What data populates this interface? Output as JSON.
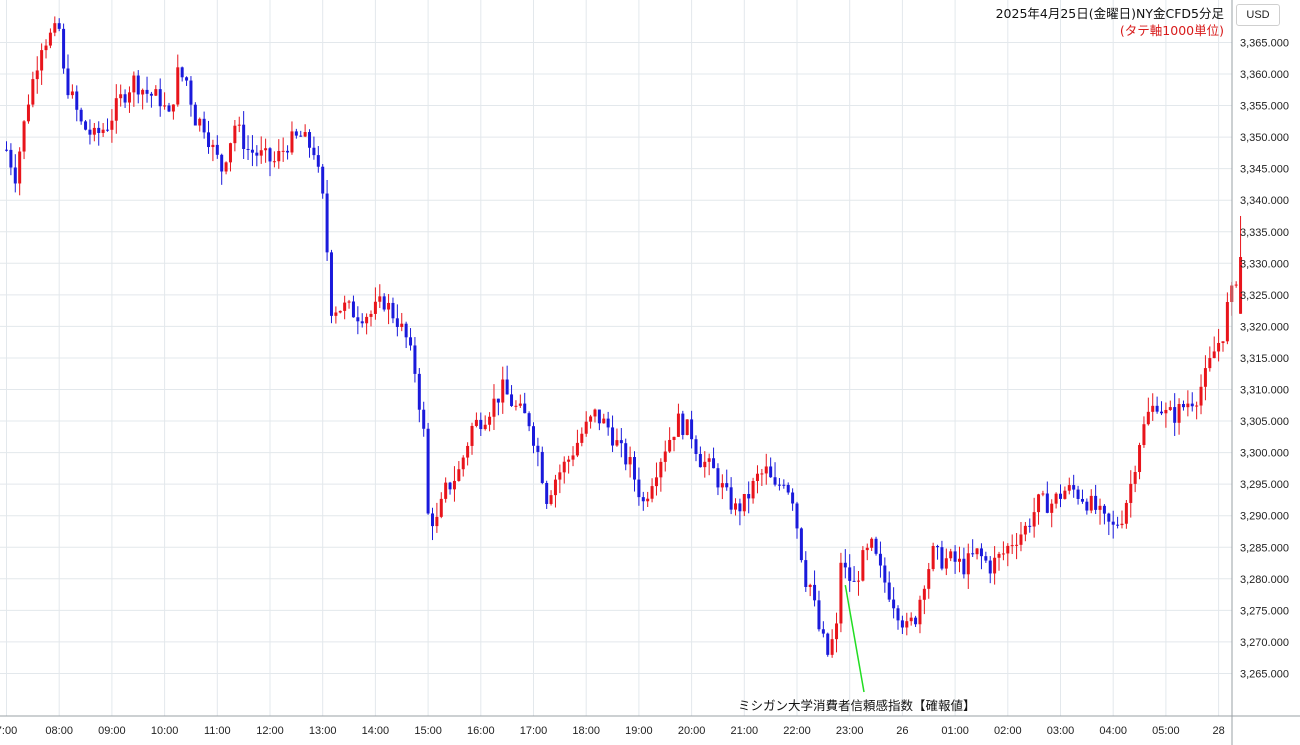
{
  "header": {
    "title": "2025年4月25日(金曜日)NY金CFD5分足",
    "subtitle": "(タテ軸1000単位)",
    "currency": "USD"
  },
  "chart_data": {
    "type": "candlestick",
    "title": "2025年4月25日(金曜日)NY金CFD5分足",
    "subtitle": "(タテ軸1000単位)",
    "currency": "USD",
    "ylim": [
      3260,
      3370
    ],
    "y_ticks": [
      "3,265.000",
      "3,270.000",
      "3,275.000",
      "3,280.000",
      "3,285.000",
      "3,290.000",
      "3,295.000",
      "3,300.000",
      "3,305.000",
      "3,310.000",
      "3,315.000",
      "3,320.000",
      "3,325.000",
      "3,330.000",
      "3,335.000",
      "3,340.000",
      "3,345.000",
      "3,350.000",
      "3,355.000",
      "3,360.000",
      "3,365.000"
    ],
    "x_labels": [
      "7:00",
      "08:00",
      "09:00",
      "10:00",
      "11:00",
      "12:00",
      "13:00",
      "14:00",
      "15:00",
      "16:00",
      "17:00",
      "18:00",
      "19:00",
      "20:00",
      "21:00",
      "22:00",
      "23:00",
      "26",
      "01:00",
      "02:00",
      "03:00",
      "04:00",
      "05:00",
      "28"
    ],
    "grid": true,
    "up_color": "#e8141b",
    "down_color": "#1a1adb",
    "annotation": {
      "text": "ミシガン大学消費者信頼感指数【確報値】",
      "time": "22:55",
      "price": 3279
    },
    "close_path": [
      [
        "07:00",
        3348
      ],
      [
        "07:10",
        3344
      ],
      [
        "07:25",
        3356
      ],
      [
        "07:40",
        3365
      ],
      [
        "07:50",
        3366
      ],
      [
        "08:00",
        3367
      ],
      [
        "08:05",
        3360
      ],
      [
        "08:15",
        3356
      ],
      [
        "08:25",
        3352
      ],
      [
        "08:40",
        3350
      ],
      [
        "08:55",
        3352
      ],
      [
        "09:10",
        3356
      ],
      [
        "09:25",
        3359
      ],
      [
        "09:40",
        3357
      ],
      [
        "09:55",
        3356
      ],
      [
        "10:05",
        3353
      ],
      [
        "10:15",
        3360
      ],
      [
        "10:25",
        3359
      ],
      [
        "10:35",
        3353
      ],
      [
        "10:45",
        3352
      ],
      [
        "10:55",
        3348
      ],
      [
        "11:05",
        3345
      ],
      [
        "11:20",
        3352
      ],
      [
        "11:35",
        3348
      ],
      [
        "11:50",
        3347
      ],
      [
        "12:05",
        3346
      ],
      [
        "12:20",
        3349
      ],
      [
        "12:35",
        3350
      ],
      [
        "12:50",
        3348
      ],
      [
        "13:00",
        3340
      ],
      [
        "13:05",
        3332
      ],
      [
        "13:10",
        3323
      ],
      [
        "13:25",
        3323
      ],
      [
        "13:40",
        3322
      ],
      [
        "13:55",
        3322
      ],
      [
        "14:10",
        3324
      ],
      [
        "14:25",
        3321
      ],
      [
        "14:35",
        3318
      ],
      [
        "14:45",
        3313
      ],
      [
        "14:55",
        3303
      ],
      [
        "15:00",
        3290
      ],
      [
        "15:10",
        3289
      ],
      [
        "15:20",
        3294
      ],
      [
        "15:35",
        3297
      ],
      [
        "15:50",
        3304
      ],
      [
        "16:05",
        3306
      ],
      [
        "16:15",
        3308
      ],
      [
        "16:25",
        3310
      ],
      [
        "16:40",
        3307
      ],
      [
        "16:55",
        3305
      ],
      [
        "17:05",
        3300
      ],
      [
        "17:15",
        3293
      ],
      [
        "17:25",
        3296
      ],
      [
        "17:40",
        3299
      ],
      [
        "17:55",
        3303
      ],
      [
        "18:10",
        3306
      ],
      [
        "18:25",
        3304
      ],
      [
        "18:40",
        3300
      ],
      [
        "18:50",
        3298
      ],
      [
        "19:00",
        3294
      ],
      [
        "19:05",
        3292
      ],
      [
        "19:15",
        3296
      ],
      [
        "19:30",
        3301
      ],
      [
        "19:45",
        3305
      ],
      [
        "20:00",
        3303
      ],
      [
        "20:10",
        3299
      ],
      [
        "20:25",
        3297
      ],
      [
        "20:40",
        3293
      ],
      [
        "20:50",
        3291
      ],
      [
        "21:00",
        3292
      ],
      [
        "21:15",
        3296
      ],
      [
        "21:25",
        3297
      ],
      [
        "21:35",
        3294
      ],
      [
        "21:45",
        3296
      ],
      [
        "21:55",
        3293
      ],
      [
        "22:05",
        3284
      ],
      [
        "22:10",
        3280
      ],
      [
        "22:15",
        3279
      ],
      [
        "22:25",
        3272
      ],
      [
        "22:35",
        3268
      ],
      [
        "22:45",
        3272
      ],
      [
        "22:50",
        3283
      ],
      [
        "22:55",
        3281
      ],
      [
        "23:05",
        3279
      ],
      [
        "23:15",
        3283
      ],
      [
        "23:25",
        3285
      ],
      [
        "23:35",
        3281
      ],
      [
        "23:45",
        3278
      ],
      [
        "23:55",
        3275
      ],
      [
        "00:05",
        3272
      ],
      [
        "00:15",
        3274
      ],
      [
        "00:25",
        3280
      ],
      [
        "00:35",
        3284
      ],
      [
        "00:45",
        3283
      ],
      [
        "00:55",
        3283
      ],
      [
        "01:10",
        3282
      ],
      [
        "01:25",
        3284
      ],
      [
        "01:40",
        3282
      ],
      [
        "01:55",
        3284
      ],
      [
        "02:05",
        3286
      ],
      [
        "02:20",
        3288
      ],
      [
        "02:35",
        3292
      ],
      [
        "02:50",
        3292
      ],
      [
        "03:05",
        3294
      ],
      [
        "03:15",
        3294
      ],
      [
        "03:25",
        3293
      ],
      [
        "03:40",
        3291
      ],
      [
        "03:50",
        3289
      ],
      [
        "04:00",
        3288
      ],
      [
        "04:10",
        3290
      ],
      [
        "04:20",
        3295
      ],
      [
        "04:30",
        3302
      ],
      [
        "04:40",
        3306
      ],
      [
        "04:50",
        3308
      ],
      [
        "05:00",
        3306
      ],
      [
        "05:10",
        3306
      ],
      [
        "05:25",
        3308
      ],
      [
        "05:35",
        3309
      ],
      [
        "05:45",
        3312
      ],
      [
        "05:55",
        3316
      ],
      [
        "06:05",
        3319
      ],
      [
        "06:10",
        3323
      ],
      [
        "06:15",
        3325
      ],
      [
        "06:20",
        3328
      ]
    ]
  }
}
